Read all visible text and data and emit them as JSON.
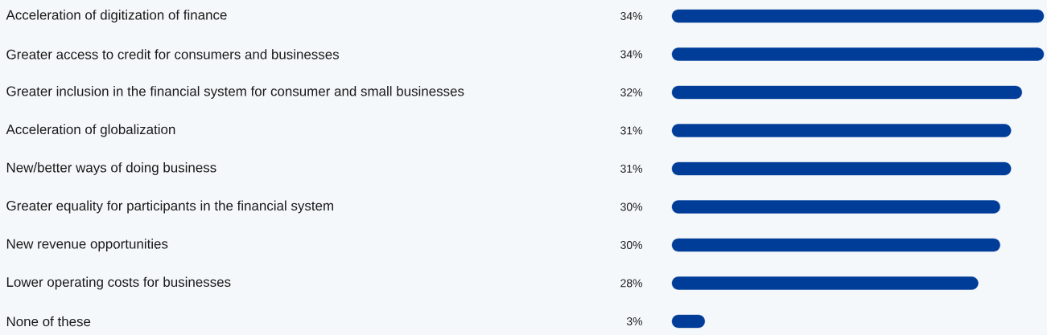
{
  "chart_data": {
    "type": "bar",
    "orientation": "horizontal",
    "categories": [
      "Acceleration of digitization of finance",
      "Greater access to credit for consumers and businesses",
      "Greater inclusion in the financial system for consumer and small businesses",
      "Acceleration of globalization",
      "New/better ways of doing business",
      "Greater equality for participants in the financial system",
      "New revenue opportunities",
      "Lower operating costs for businesses",
      "None of these"
    ],
    "values": [
      34,
      34,
      32,
      31,
      31,
      30,
      30,
      28,
      3
    ],
    "value_labels": [
      "34%",
      "34%",
      "32%",
      "31%",
      "31%",
      "30%",
      "30%",
      "28%",
      "3%"
    ],
    "color": "#003d99"
  }
}
